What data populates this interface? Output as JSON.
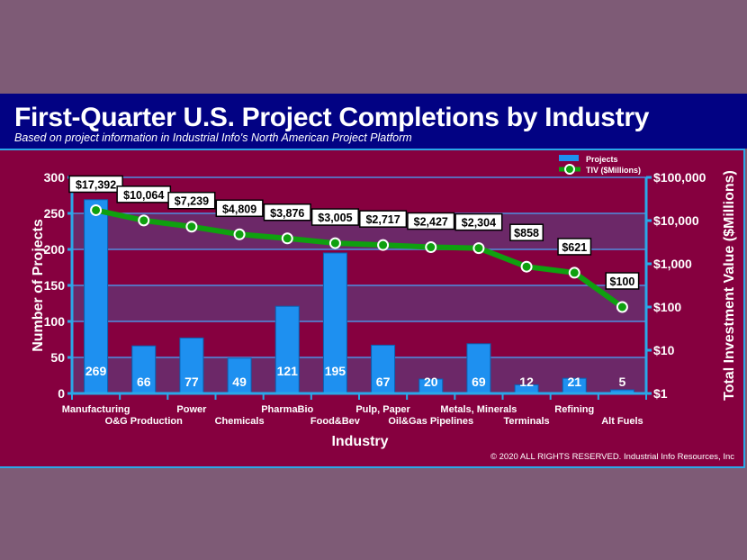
{
  "header": {
    "title": "First-Quarter U.S. Project Completions by Industry",
    "subtitle": "Based on project information in Industrial Info's North American Project Platform"
  },
  "copyright": "© 2020 ALL RIGHTS RESERVED. Industrial Info Resources, Inc",
  "chart_data": {
    "type": "bar",
    "title": "First-Quarter U.S. Project Completions by Industry",
    "xlabel": "Industry",
    "ylabel": "Number of Projects",
    "y2label": "Total Investment Value ($Millions)",
    "ylim": [
      0,
      300
    ],
    "y2lim": [
      1,
      100000
    ],
    "y2scale": "log",
    "yticks": [
      "0",
      "50",
      "100",
      "150",
      "200",
      "250",
      "300"
    ],
    "y2ticks": [
      "$1",
      "$10",
      "$100",
      "$1,000",
      "$10,000",
      "$100,000"
    ],
    "legend_position": "top-right",
    "categories": [
      "Manufacturing",
      "O&G Production",
      "Power",
      "Chemicals",
      "PharmaBio",
      "Food&Bev",
      "Pulp, Paper",
      "Oil&Gas Pipelines",
      "Metals, Minerals",
      "Terminals",
      "Refining",
      "Alt Fuels"
    ],
    "series": [
      {
        "name": "Projects",
        "type": "bar",
        "color": "#1e90f0",
        "values": [
          269,
          66,
          77,
          49,
          121,
          195,
          67,
          20,
          69,
          12,
          21,
          5
        ],
        "labels": [
          "269",
          "66",
          "77",
          "49",
          "121",
          "195",
          "67",
          "20",
          "69",
          "12",
          "21",
          "5"
        ]
      },
      {
        "name": "TIV ($Millions)",
        "type": "line",
        "axis": "right",
        "color": "#0fa00f",
        "values": [
          17392,
          10064,
          7239,
          4809,
          3876,
          3005,
          2717,
          2427,
          2304,
          858,
          621,
          100
        ],
        "labels": [
          "$17,392",
          "$10,064",
          "$7,239",
          "$4,809",
          "$3,876",
          "$3,005",
          "$2,717",
          "$2,427",
          "$2,304",
          "$858",
          "$621",
          "$100"
        ]
      }
    ]
  }
}
